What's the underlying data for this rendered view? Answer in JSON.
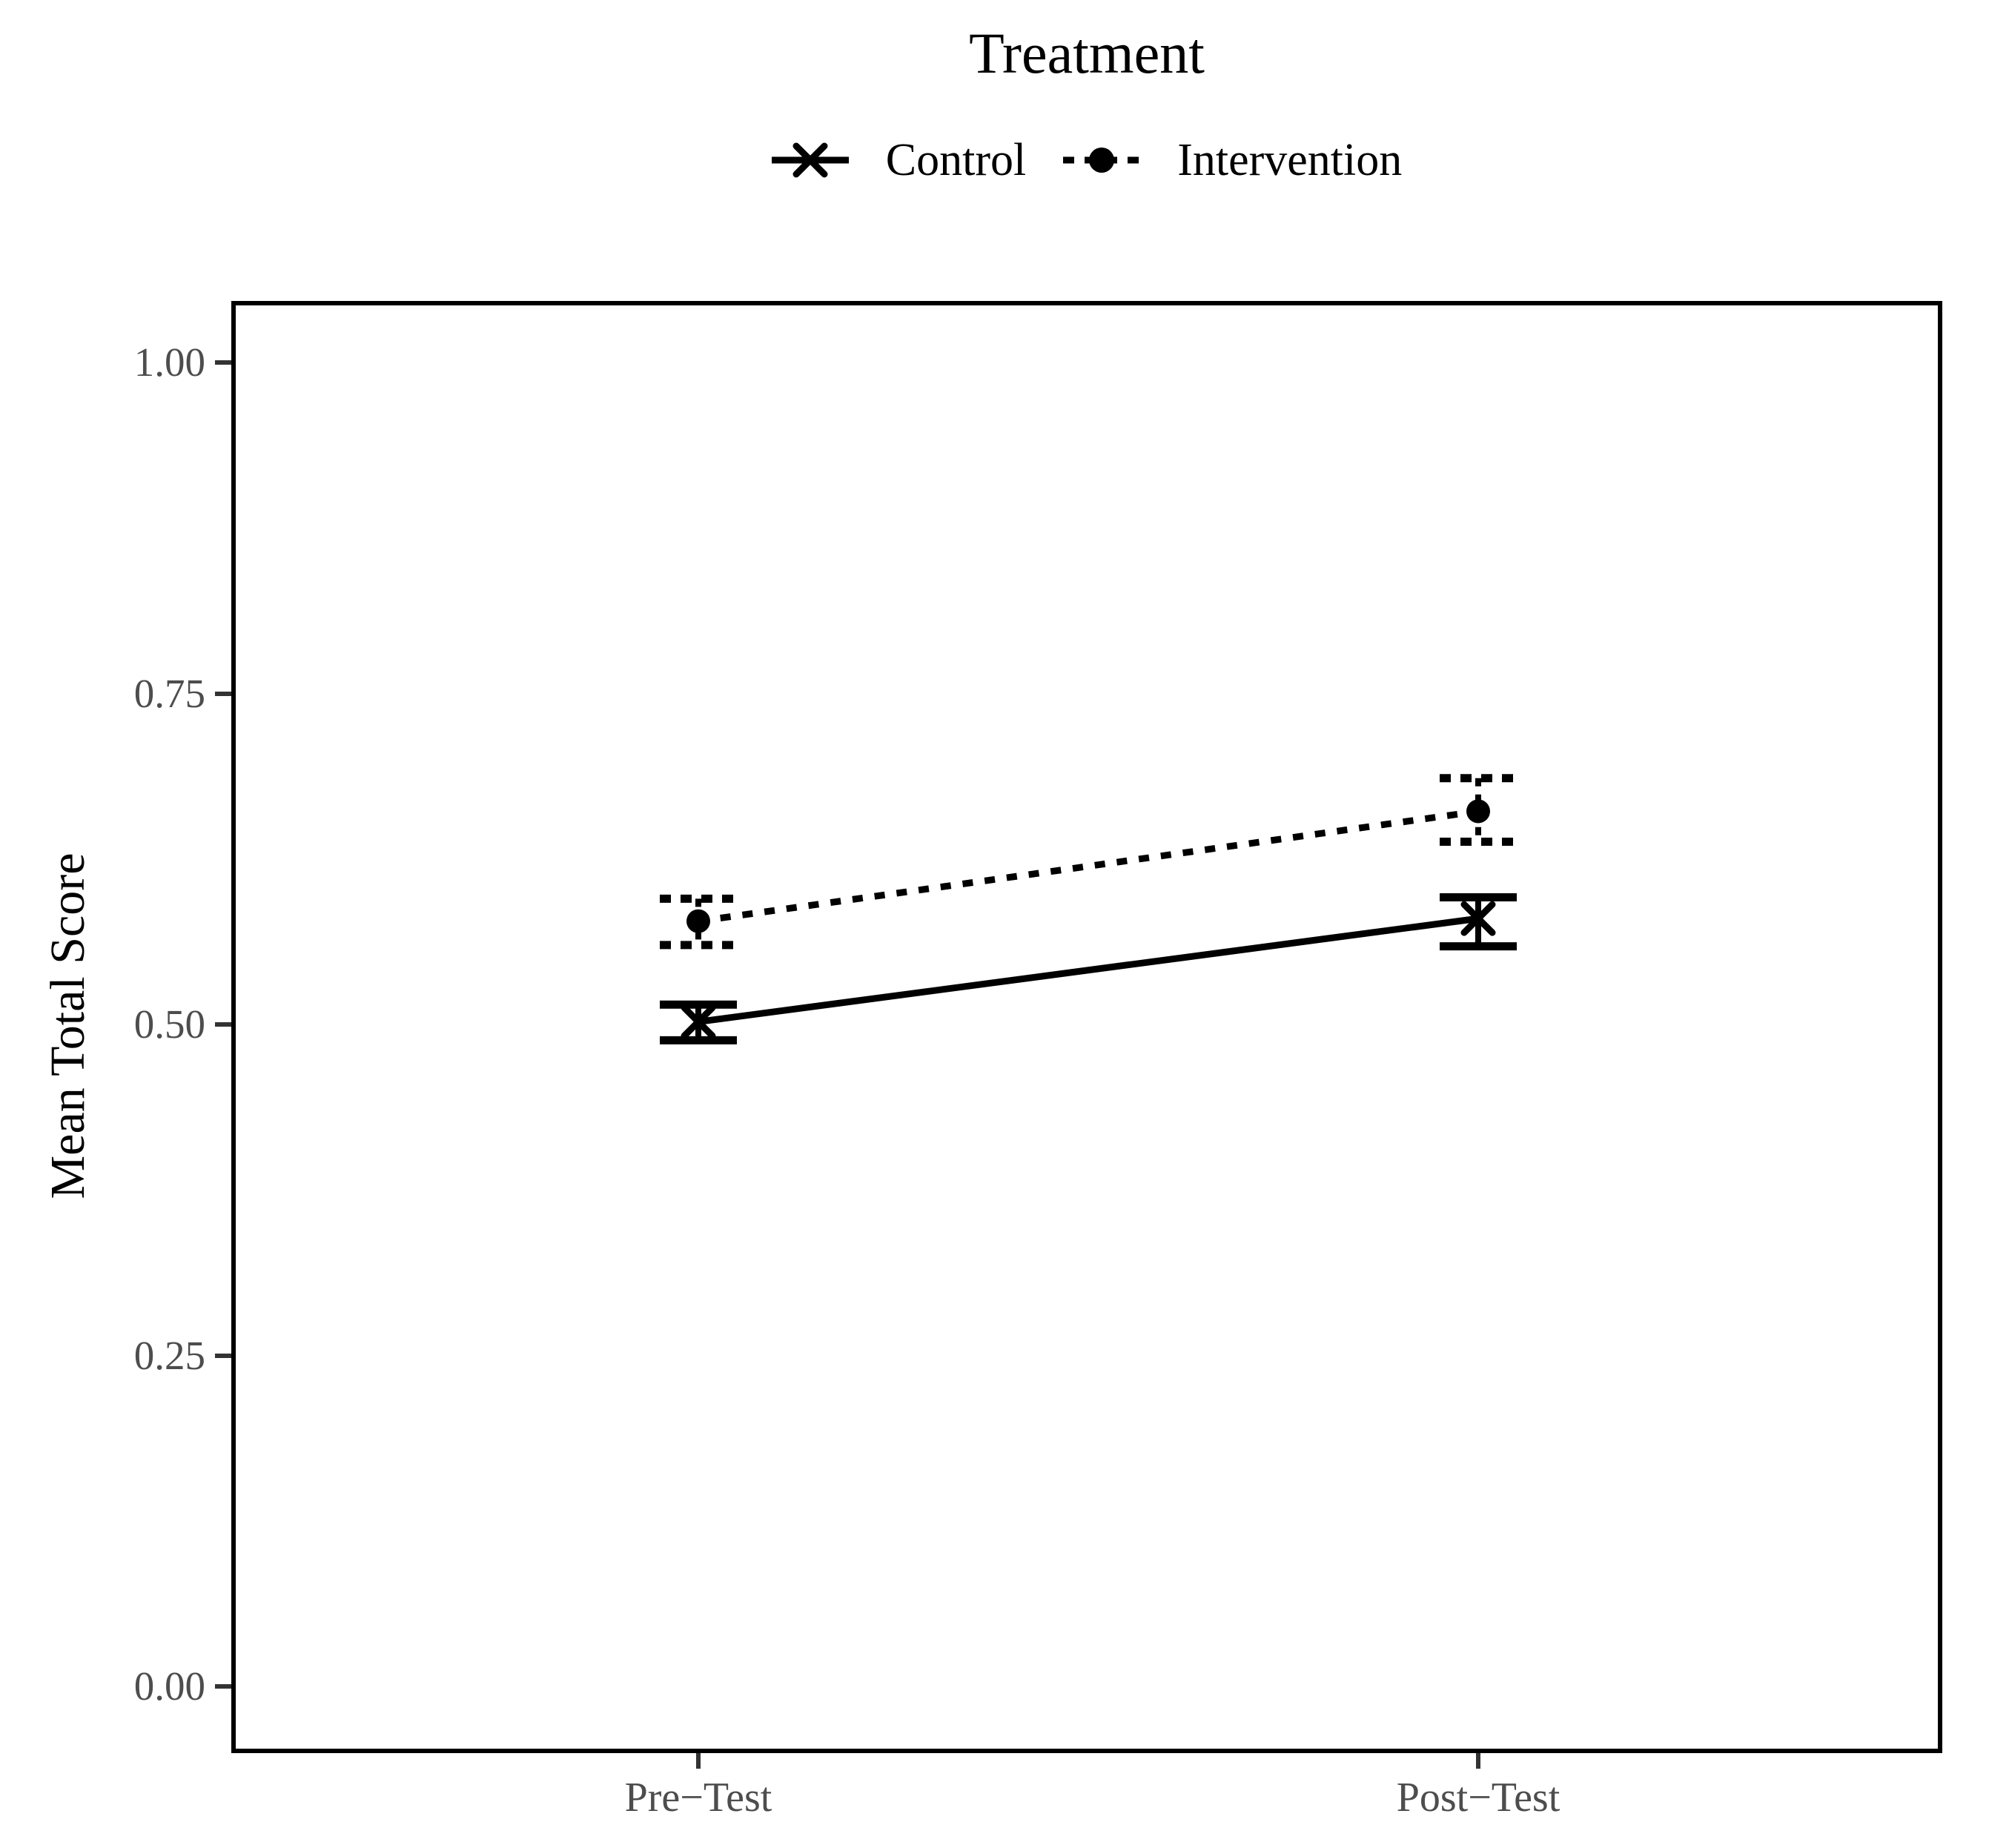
{
  "legend": {
    "title": "Treatment",
    "items": [
      {
        "label": "Control",
        "line_style": "solid",
        "marker": "x"
      },
      {
        "label": "Intervention",
        "line_style": "dashed",
        "marker": "circle"
      }
    ]
  },
  "chart_data": {
    "type": "line",
    "title": "Treatment",
    "categories": [
      "Pre−Test",
      "Post−Test"
    ],
    "xlabel": "",
    "ylabel": "Mean Total Score",
    "ylim": [
      0,
      1
    ],
    "ytick_values": [
      0,
      0.25,
      0.5,
      0.75,
      1
    ],
    "ytick_labels": [
      "0.00",
      "0.25",
      "0.50",
      "0.75",
      "1.00"
    ],
    "grid": false,
    "legend_position": "top",
    "series": [
      {
        "name": "Control",
        "line_style": "solid",
        "marker": "x",
        "values": [
          0.502,
          0.58
        ],
        "ci_low": [
          0.488,
          0.559
        ],
        "ci_high": [
          0.515,
          0.596
        ]
      },
      {
        "name": "Intervention",
        "line_style": "dashed",
        "marker": "circle",
        "values": [
          0.578,
          0.661
        ],
        "ci_low": [
          0.56,
          0.638
        ],
        "ci_high": [
          0.595,
          0.686
        ]
      }
    ],
    "colors": {
      "series": "#000000",
      "axis_text": "#4d4d4d",
      "tick": "#333333",
      "panel_border": "#000000",
      "background": "#ffffff"
    }
  }
}
